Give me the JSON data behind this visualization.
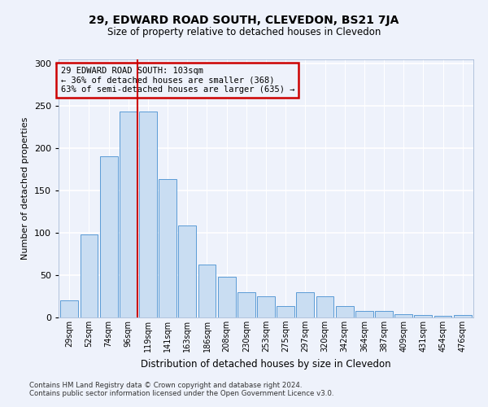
{
  "title": "29, EDWARD ROAD SOUTH, CLEVEDON, BS21 7JA",
  "subtitle": "Size of property relative to detached houses in Clevedon",
  "xlabel": "Distribution of detached houses by size in Clevedon",
  "ylabel": "Number of detached properties",
  "bin_labels": [
    "29sqm",
    "52sqm",
    "74sqm",
    "96sqm",
    "119sqm",
    "141sqm",
    "163sqm",
    "186sqm",
    "208sqm",
    "230sqm",
    "253sqm",
    "275sqm",
    "297sqm",
    "320sqm",
    "342sqm",
    "364sqm",
    "387sqm",
    "409sqm",
    "431sqm",
    "454sqm",
    "476sqm"
  ],
  "bar_values": [
    20,
    98,
    190,
    243,
    243,
    163,
    109,
    62,
    48,
    30,
    25,
    13,
    30,
    25,
    13,
    8,
    8,
    4,
    3,
    2,
    3
  ],
  "bar_color": "#c9ddf2",
  "bar_edge_color": "#5b9bd5",
  "marker_color": "#cc0000",
  "marker_bin_index": 3,
  "annotation_title": "29 EDWARD ROAD SOUTH: 103sqm",
  "annotation_line1": "← 36% of detached houses are smaller (368)",
  "annotation_line2": "63% of semi-detached houses are larger (635) →",
  "annotation_box_color": "#cc0000",
  "ylim": [
    0,
    305
  ],
  "yticks": [
    0,
    50,
    100,
    150,
    200,
    250,
    300
  ],
  "background_color": "#eef2fb",
  "grid_color": "#ffffff",
  "footer_line1": "Contains HM Land Registry data © Crown copyright and database right 2024.",
  "footer_line2": "Contains public sector information licensed under the Open Government Licence v3.0."
}
